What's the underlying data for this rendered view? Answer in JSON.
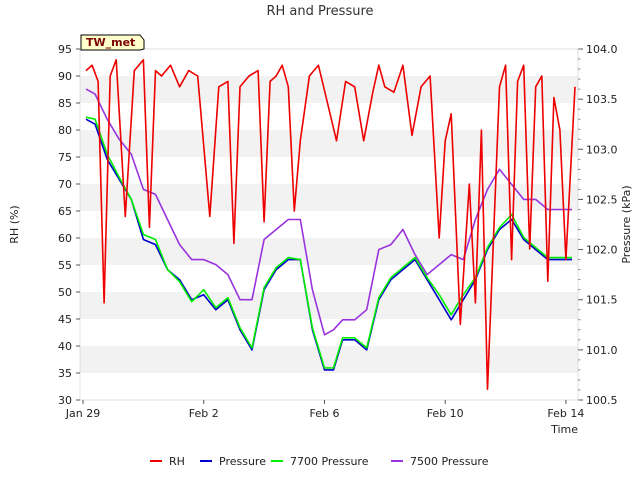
{
  "chart_data": {
    "type": "line",
    "title": "RH and Pressure",
    "site_badge": "TW_met",
    "xlabel": "Time",
    "ylabel_left": "RH (%)",
    "ylabel_right": "Pressure (kPa)",
    "x_range_days": [
      -0.1,
      16.4
    ],
    "y_left_range": [
      30,
      95
    ],
    "y_right_range": [
      100.5,
      104.0
    ],
    "x_ticks": [
      {
        "label": "Jan 29",
        "day": 0
      },
      {
        "label": "Feb 2",
        "day": 4
      },
      {
        "label": "Feb 6",
        "day": 8
      },
      {
        "label": "Feb 10",
        "day": 12
      },
      {
        "label": "Feb 14",
        "day": 16
      }
    ],
    "y_left_ticks": [
      30,
      35,
      40,
      45,
      50,
      55,
      60,
      65,
      70,
      75,
      80,
      85,
      90,
      95
    ],
    "y_right_ticks": [
      "100.5",
      "101.0",
      "101.5",
      "102.0",
      "102.5",
      "103.0",
      "103.5",
      "104.0"
    ],
    "grid": "horizontal alternating bands",
    "legend_position": "bottom",
    "series": [
      {
        "name": "RH",
        "color": "#ee0000",
        "axis": "left",
        "x": [
          0.1,
          0.3,
          0.5,
          0.7,
          0.9,
          1.1,
          1.4,
          1.7,
          2.0,
          2.2,
          2.4,
          2.6,
          2.9,
          3.2,
          3.5,
          3.8,
          4.2,
          4.5,
          4.8,
          5.0,
          5.2,
          5.5,
          5.8,
          6.0,
          6.2,
          6.4,
          6.6,
          6.8,
          7.0,
          7.2,
          7.5,
          7.8,
          8.1,
          8.4,
          8.7,
          9.0,
          9.3,
          9.6,
          9.8,
          10.0,
          10.3,
          10.6,
          10.9,
          11.2,
          11.5,
          11.8,
          12.0,
          12.2,
          12.5,
          12.8,
          13.0,
          13.2,
          13.4,
          13.6,
          13.8,
          14.0,
          14.2,
          14.4,
          14.6,
          14.8,
          15.0,
          15.2,
          15.4,
          15.6,
          15.8,
          16.0,
          16.3
        ],
        "y": [
          91,
          92,
          89,
          48,
          90,
          93,
          64,
          91,
          93,
          62,
          91,
          90,
          92,
          88,
          91,
          90,
          64,
          88,
          89,
          59,
          88,
          90,
          91,
          63,
          89,
          90,
          92,
          88,
          65,
          78,
          90,
          92,
          85,
          78,
          89,
          88,
          78,
          87,
          92,
          88,
          87,
          92,
          79,
          88,
          90,
          60,
          78,
          83,
          44,
          70,
          48,
          80,
          32,
          60,
          88,
          92,
          56,
          89,
          92,
          58,
          88,
          90,
          52,
          86,
          80,
          56,
          88
        ]
      },
      {
        "name": "Pressure",
        "color": "#0000cc",
        "axis": "right",
        "x": [
          0.1,
          0.4,
          0.8,
          1.2,
          1.6,
          2.0,
          2.4,
          2.8,
          3.2,
          3.6,
          4.0,
          4.4,
          4.8,
          5.2,
          5.6,
          6.0,
          6.4,
          6.8,
          7.2,
          7.6,
          8.0,
          8.3,
          8.6,
          9.0,
          9.4,
          9.8,
          10.2,
          10.6,
          11.0,
          11.4,
          11.8,
          12.2,
          12.6,
          13.0,
          13.4,
          13.8,
          14.2,
          14.6,
          15.0,
          15.4,
          15.8,
          16.2
        ],
        "y": [
          103.3,
          103.25,
          102.9,
          102.7,
          102.5,
          102.1,
          102.05,
          101.8,
          101.7,
          101.5,
          101.55,
          101.4,
          101.5,
          101.2,
          101.0,
          101.6,
          101.8,
          101.9,
          101.9,
          101.2,
          100.8,
          100.8,
          101.1,
          101.1,
          101.0,
          101.5,
          101.7,
          101.8,
          101.9,
          101.7,
          101.5,
          101.3,
          101.5,
          101.7,
          102.0,
          102.2,
          102.3,
          102.1,
          102.0,
          101.9,
          101.9,
          101.9
        ]
      },
      {
        "name": "7700 Pressure",
        "color": "#00ee00",
        "axis": "right",
        "x": [
          0.1,
          0.4,
          0.8,
          1.2,
          1.6,
          2.0,
          2.4,
          2.8,
          3.2,
          3.6,
          4.0,
          4.4,
          4.8,
          5.2,
          5.6,
          6.0,
          6.4,
          6.8,
          7.2,
          7.6,
          8.0,
          8.3,
          8.6,
          9.0,
          9.4,
          9.8,
          10.2,
          10.6,
          11.0,
          11.4,
          11.8,
          12.2,
          12.6,
          13.0,
          13.4,
          13.8,
          14.2,
          14.6,
          15.0,
          15.4,
          15.8,
          16.2
        ],
        "y": [
          103.32,
          103.3,
          102.95,
          102.72,
          102.5,
          102.15,
          102.1,
          101.8,
          101.68,
          101.48,
          101.6,
          101.42,
          101.52,
          101.22,
          101.02,
          101.62,
          101.82,
          101.92,
          101.9,
          101.22,
          100.82,
          100.82,
          101.12,
          101.12,
          101.02,
          101.52,
          101.72,
          101.82,
          101.92,
          101.72,
          101.55,
          101.35,
          101.55,
          101.72,
          102.02,
          102.22,
          102.35,
          102.12,
          102.02,
          101.92,
          101.92,
          101.92
        ]
      },
      {
        "name": "7500 Pressure",
        "color": "#9933dd",
        "axis": "right",
        "x": [
          0.1,
          0.4,
          0.8,
          1.2,
          1.6,
          2.0,
          2.4,
          2.8,
          3.2,
          3.6,
          4.0,
          4.4,
          4.8,
          5.2,
          5.6,
          6.0,
          6.4,
          6.8,
          7.2,
          7.6,
          8.0,
          8.3,
          8.6,
          9.0,
          9.4,
          9.8,
          10.2,
          10.6,
          11.0,
          11.4,
          11.8,
          12.2,
          12.6,
          13.0,
          13.4,
          13.8,
          14.2,
          14.6,
          15.0,
          15.4,
          15.8,
          16.2
        ],
        "y": [
          103.6,
          103.55,
          103.3,
          103.1,
          102.95,
          102.6,
          102.55,
          102.3,
          102.05,
          101.9,
          101.9,
          101.85,
          101.75,
          101.5,
          101.5,
          102.1,
          102.2,
          102.3,
          102.3,
          101.6,
          101.15,
          101.2,
          101.3,
          101.3,
          101.4,
          102.0,
          102.05,
          102.2,
          101.95,
          101.75,
          101.85,
          101.95,
          101.9,
          102.3,
          102.6,
          102.8,
          102.65,
          102.5,
          102.5,
          102.4,
          102.4,
          102.4
        ]
      }
    ]
  }
}
